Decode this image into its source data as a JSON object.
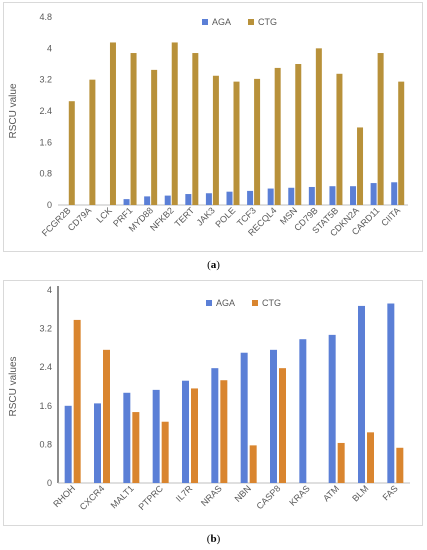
{
  "chart_data": [
    {
      "id": "a",
      "type": "bar",
      "panel_label": "a",
      "ylabel": "RSCU value",
      "ylim": [
        0,
        4.8
      ],
      "yticks": [
        0,
        0.8,
        1.6,
        2.4,
        3.2,
        4,
        4.8
      ],
      "grid": false,
      "legend": "top-center",
      "categories": [
        "FCGR2B",
        "CD79A",
        "LCK",
        "PRF1",
        "MYD88",
        "NFKB2",
        "TERT",
        "JAK3",
        "POLE",
        "TCF3",
        "RECQL4",
        "MSN",
        "CD79B",
        "STAT5B",
        "CDKN2A",
        "CARD11",
        "CIITA"
      ],
      "series": [
        {
          "name": "AGA",
          "color": "#5b7fd6",
          "values": [
            0.0,
            0.0,
            0.0,
            0.15,
            0.22,
            0.24,
            0.28,
            0.3,
            0.34,
            0.36,
            0.42,
            0.44,
            0.46,
            0.48,
            0.48,
            0.56,
            0.58
          ]
        },
        {
          "name": "CTG",
          "color": "#b8913a",
          "values": [
            2.65,
            3.2,
            4.15,
            3.88,
            3.45,
            4.15,
            3.88,
            3.3,
            3.15,
            3.22,
            3.5,
            3.6,
            4.0,
            3.35,
            1.98,
            3.88,
            3.15
          ]
        }
      ]
    },
    {
      "id": "b",
      "type": "bar",
      "panel_label": "b",
      "ylabel": "RSCU values",
      "ylim": [
        0,
        4
      ],
      "yticks": [
        0,
        0.8,
        1.6,
        2.4,
        3.2,
        4
      ],
      "grid": false,
      "legend": "top-right",
      "categories": [
        "RHOH",
        "CXCR4",
        "MALT1",
        "PTPRC",
        "IL7R",
        "NRAS",
        "NBN",
        "CASP8",
        "KRAS",
        "ATM",
        "BLM",
        "FAS"
      ],
      "series": [
        {
          "name": "AGA",
          "color": "#5b7fd6",
          "values": [
            1.6,
            1.65,
            1.87,
            1.93,
            2.12,
            2.38,
            2.7,
            2.76,
            2.98,
            3.07,
            3.67,
            3.72
          ]
        },
        {
          "name": "CTG",
          "color": "#d9852f",
          "values": [
            3.38,
            2.76,
            1.47,
            1.27,
            1.96,
            2.13,
            0.78,
            2.38,
            0.0,
            0.83,
            1.05,
            0.73
          ]
        }
      ]
    }
  ]
}
